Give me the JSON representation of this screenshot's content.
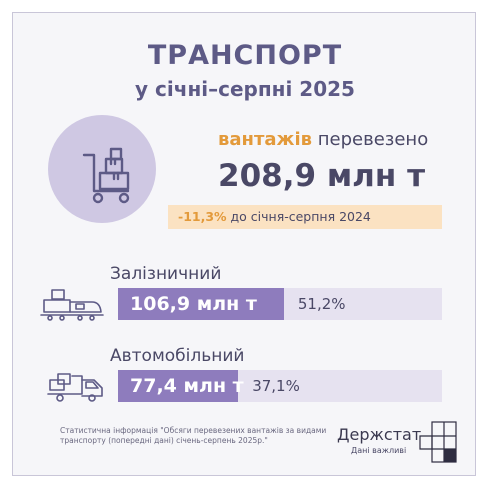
{
  "header": {
    "title": "ТРАНСПОРТ",
    "subtitle": "у січні–серпні 2025"
  },
  "summary": {
    "accent_word": "вантажів",
    "rest_word": " перевезено",
    "total": "208,9 млн т",
    "change_pct": "-11,3%",
    "change_text": " до січня-серпня 2024",
    "icon": "cargo-cart-icon"
  },
  "modes": [
    {
      "label": "Залізничний",
      "value": "106,9 млн т",
      "share_text": "51,2%",
      "share": 51.2,
      "icon": "train-icon"
    },
    {
      "label": "Автомобільний",
      "value": "77,4 млн т",
      "share_text": "37,1%",
      "share": 37.1,
      "icon": "truck-icon"
    }
  ],
  "footer": {
    "source": "Статистична інформація \"Обсяги перевезених вантажів за видами транспорту (попередні дані) січень-серпень 2025р.\"",
    "brand": "Держстат",
    "tagline": "Дані важливі"
  },
  "colors": {
    "accent": "#e39a3b",
    "bar": "#8e7cbd",
    "track": "#e6e2f0",
    "circle": "#cfc8e3",
    "title": "#5d5a86"
  }
}
